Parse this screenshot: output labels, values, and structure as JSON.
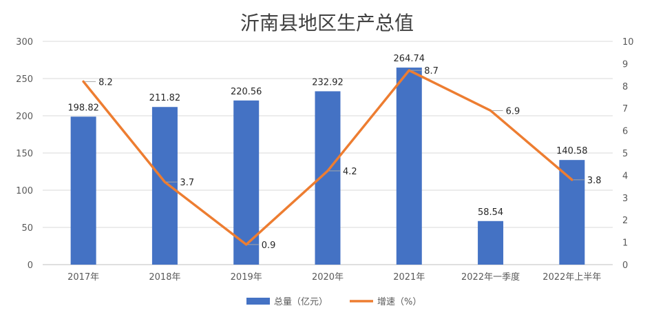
{
  "chart_data": {
    "type": "bar",
    "title": "沂南县地区生产总值",
    "categories": [
      "2017年",
      "2018年",
      "2019年",
      "2020年",
      "2021年",
      "2022年一季度",
      "2022年上半年"
    ],
    "series": [
      {
        "name": "总量（亿元）",
        "type": "bar",
        "axis": "left",
        "values": [
          198.82,
          211.82,
          220.56,
          232.92,
          264.74,
          58.54,
          140.58
        ],
        "labels": [
          "198.82",
          "211.82",
          "220.56",
          "232.92",
          "264.74",
          "58.54",
          "140.58"
        ],
        "color": "#4472c4"
      },
      {
        "name": "增速（%）",
        "type": "line",
        "axis": "right",
        "values": [
          8.2,
          3.7,
          0.9,
          4.2,
          8.7,
          6.9,
          3.8
        ],
        "labels": [
          "8.2",
          "3.7",
          "0.9",
          "4.2",
          "8.7",
          "6.9",
          "3.8"
        ],
        "color": "#ed7d31"
      }
    ],
    "y_left": {
      "min": 0,
      "max": 300,
      "ticks": [
        "0",
        "50",
        "100",
        "150",
        "200",
        "250",
        "300"
      ]
    },
    "y_right": {
      "min": 0,
      "max": 10,
      "ticks": [
        "0",
        "1",
        "2",
        "3",
        "4",
        "5",
        "6",
        "7",
        "8",
        "9",
        "10"
      ]
    },
    "grid": true,
    "legend": "bottom"
  }
}
